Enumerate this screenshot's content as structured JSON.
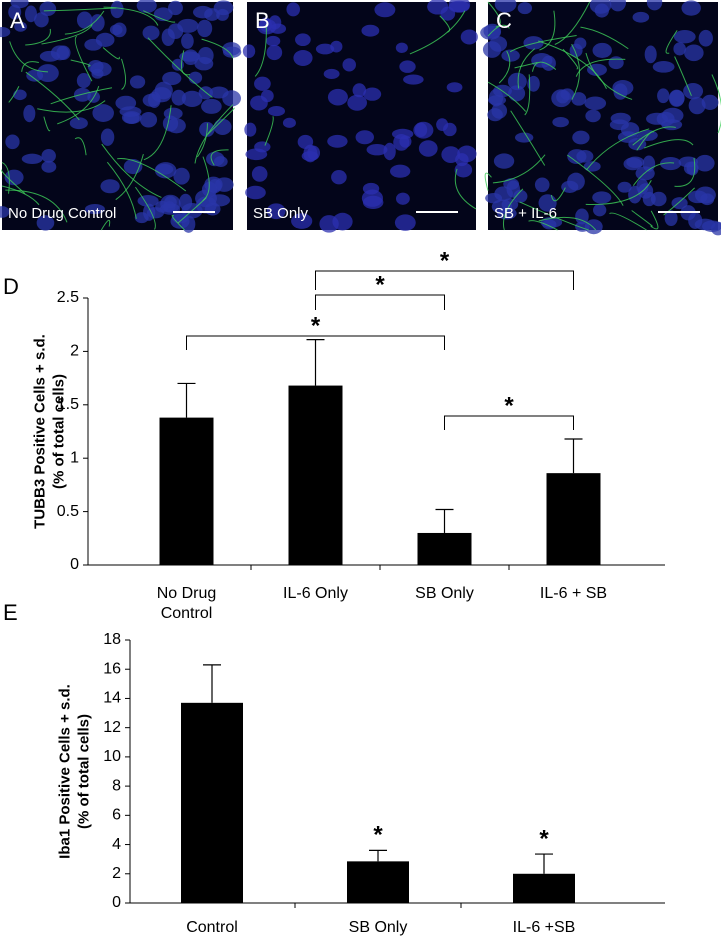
{
  "images": [
    {
      "label": "A",
      "caption": "No Drug Control"
    },
    {
      "label": "B",
      "caption": "SB Only"
    },
    {
      "label": "C",
      "caption": "SB + IL-6"
    }
  ],
  "chart_data": [
    {
      "type": "bar",
      "panel_label": "D",
      "ylabel": [
        "TUBB3 Positive Cells + s.d.",
        "(% of total cells)"
      ],
      "categories": [
        "No Drug Control",
        "IL-6 Only",
        "SB Only",
        "IL-6 + SB"
      ],
      "values": [
        1.38,
        1.68,
        0.3,
        0.86
      ],
      "errors": [
        0.32,
        0.43,
        0.22,
        0.32
      ],
      "color": "#000000",
      "ylim": [
        0,
        2.5
      ],
      "yticks": [
        0,
        0.5,
        1,
        1.5,
        2,
        2.5
      ],
      "significance": [
        {
          "pair": [
            0,
            2
          ],
          "label": "*"
        },
        {
          "pair": [
            1,
            2
          ],
          "label": "*"
        },
        {
          "pair": [
            1,
            3
          ],
          "label": "*"
        },
        {
          "pair": [
            2,
            3
          ],
          "label": "*"
        }
      ]
    },
    {
      "type": "bar",
      "panel_label": "E",
      "ylabel": [
        "Iba1 Positive Cells + s.d.",
        "(% of total cells)"
      ],
      "categories": [
        "Control",
        "SB Only",
        "IL-6 +SB"
      ],
      "values": [
        13.7,
        2.85,
        2.0
      ],
      "errors": [
        2.6,
        0.75,
        1.35
      ],
      "color": "#000000",
      "ylim": [
        0,
        18
      ],
      "yticks": [
        0,
        2,
        4,
        6,
        8,
        10,
        12,
        14,
        16,
        18
      ],
      "significance_labels": [
        null,
        "*",
        "*"
      ]
    }
  ]
}
